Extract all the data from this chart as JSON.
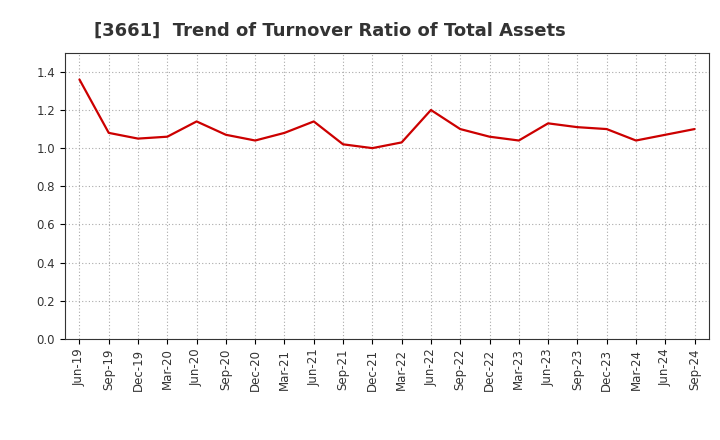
{
  "title": "[3661]  Trend of Turnover Ratio of Total Assets",
  "x_labels": [
    "Jun-19",
    "Sep-19",
    "Dec-19",
    "Mar-20",
    "Jun-20",
    "Sep-20",
    "Dec-20",
    "Mar-21",
    "Jun-21",
    "Sep-21",
    "Dec-21",
    "Mar-22",
    "Jun-22",
    "Sep-22",
    "Dec-22",
    "Mar-23",
    "Jun-23",
    "Sep-23",
    "Dec-23",
    "Mar-24",
    "Jun-24",
    "Sep-24"
  ],
  "y_values": [
    1.36,
    1.08,
    1.05,
    1.06,
    1.14,
    1.07,
    1.04,
    1.08,
    1.14,
    1.02,
    1.0,
    1.03,
    1.2,
    1.1,
    1.06,
    1.04,
    1.13,
    1.11,
    1.1,
    1.04,
    1.07,
    1.1
  ],
  "line_color": "#cc0000",
  "line_width": 1.6,
  "ylim": [
    0.0,
    1.5
  ],
  "yticks": [
    0.0,
    0.2,
    0.4,
    0.6,
    0.8,
    1.0,
    1.2,
    1.4
  ],
  "grid_color": "#aaaaaa",
  "background_color": "#ffffff",
  "title_fontsize": 13,
  "tick_fontsize": 8.5,
  "title_color": "#333333"
}
